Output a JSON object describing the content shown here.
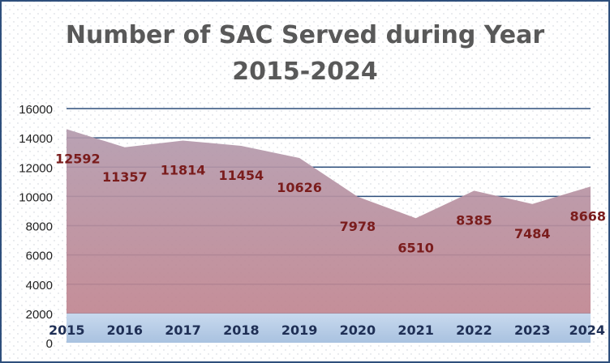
{
  "chart_data": {
    "type": "area",
    "title_line1": "Number of SAC Served during Year",
    "title_line2": "2015-2024",
    "categories": [
      "2015",
      "2016",
      "2017",
      "2018",
      "2019",
      "2020",
      "2021",
      "2022",
      "2023",
      "2024"
    ],
    "values": [
      12592,
      11357,
      11814,
      11454,
      10626,
      7978,
      6510,
      8385,
      7484,
      8668
    ],
    "baseline_band_value": 2000,
    "ylim": [
      0,
      16000
    ],
    "yticks": [
      "0",
      "2000",
      "4000",
      "6000",
      "8000",
      "10000",
      "12000",
      "14000",
      "16000"
    ],
    "grid": true,
    "colors": {
      "area_top": "#b39aad",
      "area_bottom": "#c08590",
      "band": "#b7cde6",
      "gridline": "#2e4f7c",
      "data_label": "#7a1c1c",
      "title": "#595959",
      "axis_text": "#1f2f55",
      "outline": "#2e4f7c"
    }
  }
}
